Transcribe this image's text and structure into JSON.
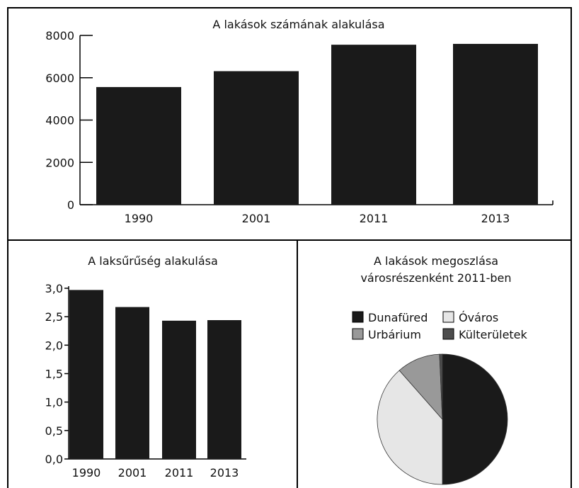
{
  "chart_data": [
    {
      "type": "bar",
      "title": "A lakások számának alakulása",
      "categories": [
        "1990",
        "2001",
        "2011",
        "2013"
      ],
      "values": [
        5560,
        6310,
        7560,
        7600
      ],
      "ylim": [
        0,
        8000
      ],
      "yticks": [
        "0",
        "2000",
        "4000",
        "6000",
        "8000"
      ],
      "xlabel": "",
      "ylabel": "",
      "bar_color": "#1a1a1a"
    },
    {
      "type": "bar",
      "title": "A laksűrűség alakulása",
      "categories": [
        "1990",
        "2001",
        "2011",
        "2013"
      ],
      "values": [
        2.97,
        2.67,
        2.43,
        2.44
      ],
      "ylim": [
        0,
        3
      ],
      "yticks": [
        "0,0",
        "0,5",
        "1,0",
        "1,5",
        "2,0",
        "2,5",
        "3,0"
      ],
      "xlabel": "",
      "ylabel": "",
      "bar_color": "#1a1a1a"
    },
    {
      "type": "pie",
      "title_lines": [
        "A lakások megoszlása",
        "városrészenként 2011-ben"
      ],
      "slices": [
        {
          "label": "Dunafüred",
          "value": 50.0,
          "color": "#1a1a1a"
        },
        {
          "label": "Óváros",
          "value": 38.5,
          "color": "#e6e6e6"
        },
        {
          "label": "Urbárium",
          "value": 10.8,
          "color": "#999999"
        },
        {
          "label": "Külterületek",
          "value": 0.7,
          "color": "#4d4d4d"
        }
      ],
      "legend": "top"
    }
  ]
}
